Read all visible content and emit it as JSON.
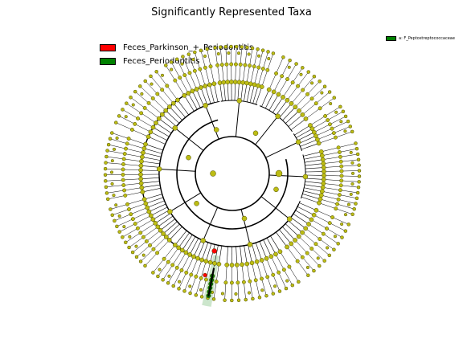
{
  "title": "Significantly Represented Taxa",
  "legend": [
    {
      "label": "Feces_Parkinson_+_Periodontitis",
      "color": "#ff0000"
    },
    {
      "label": "Feces_Periodontitis",
      "color": "#008000"
    }
  ],
  "clade_legend": [
    {
      "label": "a: F_Peptostreptococcaceae",
      "color": "#008000"
    }
  ],
  "colors": {
    "node_default": "#bcbc14",
    "node_edge": "#4a4a00",
    "branch": "#000000",
    "highlight_shade": "#bfe0bf"
  }
}
